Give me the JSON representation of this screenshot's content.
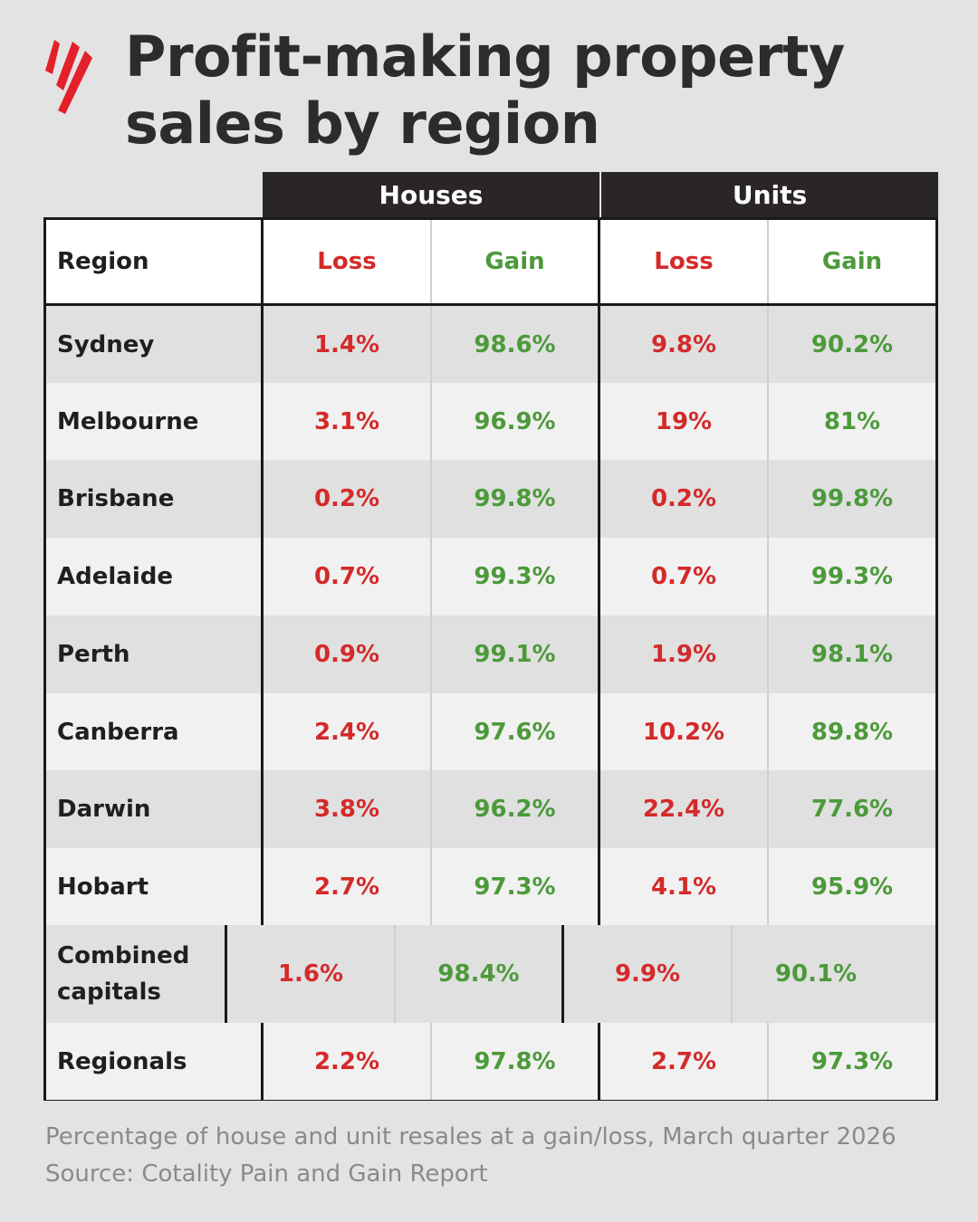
{
  "title_lines": [
    "Profit-making property",
    "sales by region"
  ],
  "logo": "sbs-logo",
  "colors": {
    "loss": "#d42a2a",
    "gain": "#4c9a3a",
    "header_bg": "#2a2526"
  },
  "chart_data": {
    "type": "table",
    "title": "Profit-making property sales by region",
    "groups": [
      "Houses",
      "Units"
    ],
    "columns": [
      "Region",
      "Loss",
      "Gain",
      "Loss",
      "Gain"
    ],
    "rows": [
      {
        "region": "Sydney",
        "houses_loss": "1.4%",
        "houses_gain": "98.6%",
        "units_loss": "9.8%",
        "units_gain": "90.2%"
      },
      {
        "region": "Melbourne",
        "houses_loss": "3.1%",
        "houses_gain": "96.9%",
        "units_loss": "19%",
        "units_gain": "81%"
      },
      {
        "region": "Brisbane",
        "houses_loss": "0.2%",
        "houses_gain": "99.8%",
        "units_loss": "0.2%",
        "units_gain": "99.8%"
      },
      {
        "region": "Adelaide",
        "houses_loss": "0.7%",
        "houses_gain": "99.3%",
        "units_loss": "0.7%",
        "units_gain": "99.3%"
      },
      {
        "region": "Perth",
        "houses_loss": "0.9%",
        "houses_gain": "99.1%",
        "units_loss": "1.9%",
        "units_gain": "98.1%"
      },
      {
        "region": "Canberra",
        "houses_loss": "2.4%",
        "houses_gain": "97.6%",
        "units_loss": "10.2%",
        "units_gain": "89.8%"
      },
      {
        "region": "Darwin",
        "houses_loss": "3.8%",
        "houses_gain": "96.2%",
        "units_loss": "22.4%",
        "units_gain": "77.6%"
      },
      {
        "region": "Hobart",
        "houses_loss": "2.7%",
        "houses_gain": "97.3%",
        "units_loss": "4.1%",
        "units_gain": "95.9%"
      },
      {
        "region": "Combined capitals",
        "houses_loss": "1.6%",
        "houses_gain": "98.4%",
        "units_loss": "9.9%",
        "units_gain": "90.1%"
      },
      {
        "region": "Regionals",
        "houses_loss": "2.2%",
        "houses_gain": "97.8%",
        "units_loss": "2.7%",
        "units_gain": "97.3%"
      }
    ]
  },
  "footer": {
    "caption": "Percentage of house and unit resales at a gain/loss, March quarter 2026",
    "source": "Source: Cotality Pain and Gain Report"
  }
}
